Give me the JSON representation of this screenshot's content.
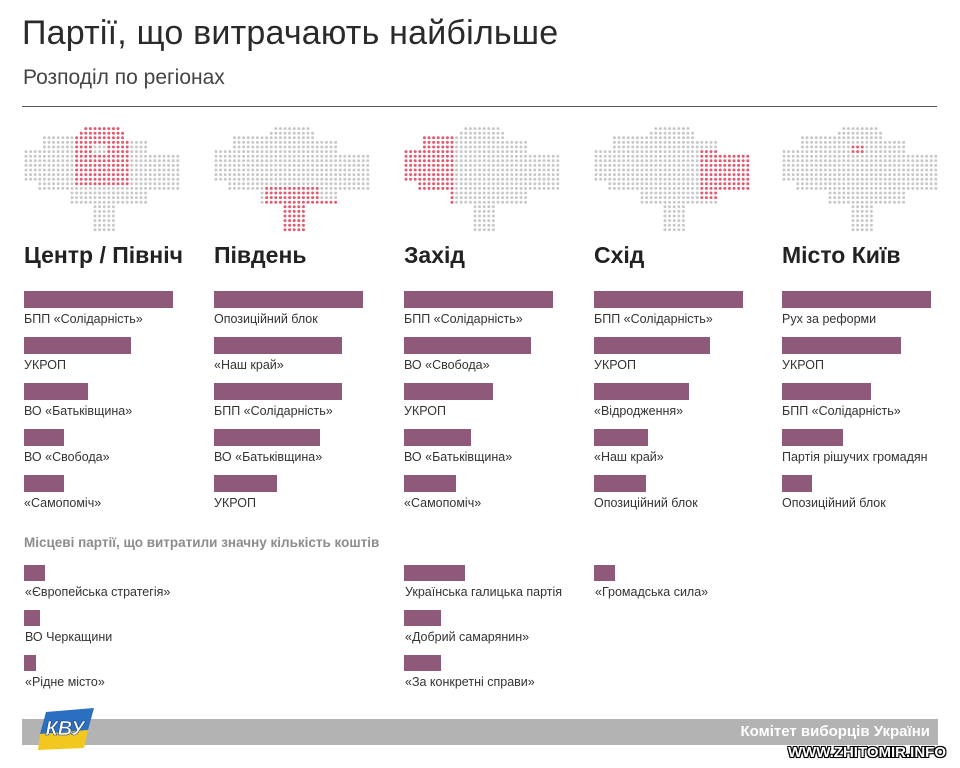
{
  "header": {
    "title": "Партії, що витрачають найбільше",
    "subtitle": "Розподіл по регіонах"
  },
  "colors": {
    "bar": "#8f5a79",
    "map_dot": "#c9c9c9",
    "map_highlight": "#e35b70"
  },
  "chart_data": {
    "type": "bar",
    "regions": [
      {
        "name": "Центр / Північ",
        "highlight": "center-north",
        "parties": [
          {
            "label": "БПП «Солідарність»",
            "value": 100
          },
          {
            "label": "УКРОП",
            "value": 72
          },
          {
            "label": "ВО «Батьківщина»",
            "value": 43
          },
          {
            "label": "ВО «Свобода»",
            "value": 27
          },
          {
            "label": "«Самопоміч»",
            "value": 27
          }
        ]
      },
      {
        "name": "Південь",
        "highlight": "south",
        "parties": [
          {
            "label": "Опозиційний блок",
            "value": 100
          },
          {
            "label": "«Наш край»",
            "value": 86
          },
          {
            "label": "БПП «Солідарність»",
            "value": 86
          },
          {
            "label": "ВО «Батьківщина»",
            "value": 71
          },
          {
            "label": "УКРОП",
            "value": 42
          }
        ]
      },
      {
        "name": "Захід",
        "highlight": "west",
        "parties": [
          {
            "label": "БПП «Солідарність»",
            "value": 100
          },
          {
            "label": "ВО «Свобода»",
            "value": 85
          },
          {
            "label": "УКРОП",
            "value": 60
          },
          {
            "label": "ВО «Батьківщина»",
            "value": 45
          },
          {
            "label": "«Самопоміч»",
            "value": 35
          }
        ]
      },
      {
        "name": "Схід",
        "highlight": "east",
        "parties": [
          {
            "label": "БПП «Солідарність»",
            "value": 100
          },
          {
            "label": "УКРОП",
            "value": 78
          },
          {
            "label": "«Відродження»",
            "value": 64
          },
          {
            "label": "«Наш край»",
            "value": 36
          },
          {
            "label": "Опозиційний блок",
            "value": 35
          }
        ]
      },
      {
        "name": "Місто Київ",
        "highlight": "kyiv",
        "parties": [
          {
            "label": "Рух за реформи",
            "value": 100
          },
          {
            "label": "УКРОП",
            "value": 80
          },
          {
            "label": "БПП «Солідарність»",
            "value": 60
          },
          {
            "label": "Партія рішучих громадян",
            "value": 41
          },
          {
            "label": "Опозиційний блок",
            "value": 20
          }
        ]
      }
    ],
    "local": {
      "title": "Місцеві партії, що витратили значну кількість коштів",
      "columns": [
        {
          "region_index": 0,
          "parties": [
            {
              "label": "«Європейська стратегія»",
              "value": 14
            },
            {
              "label": "ВО Черкащини",
              "value": 11
            },
            {
              "label": "«Рідне місто»",
              "value": 8
            }
          ]
        },
        {
          "region_index": 2,
          "parties": [
            {
              "label": "Українська галицька партія",
              "value": 41
            },
            {
              "label": "«Добрий самарянин»",
              "value": 25
            },
            {
              "label": "«За конкретні справи»",
              "value": 25
            }
          ]
        },
        {
          "region_index": 3,
          "parties": [
            {
              "label": "«Громадська сила»",
              "value": 14
            }
          ]
        }
      ]
    }
  },
  "footer": {
    "organization": "Комітет виборців України",
    "watermark": "WWW.ZHITOMIR.INFO"
  },
  "logo": {
    "text": "КВУ"
  }
}
